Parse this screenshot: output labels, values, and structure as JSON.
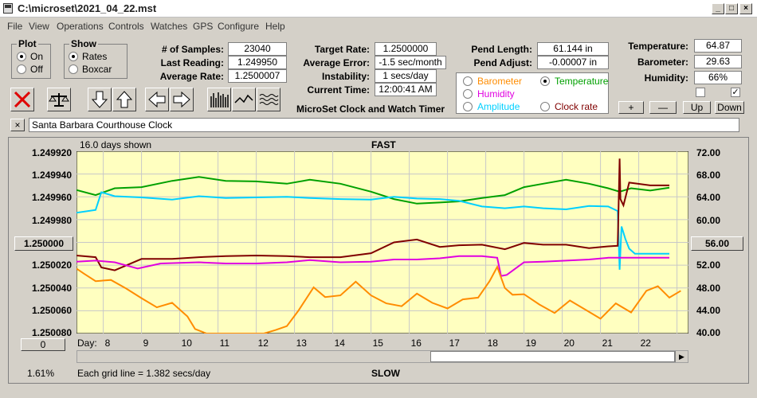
{
  "window": {
    "title": "C:\\microset\\2021_04_22.mst"
  },
  "menu": [
    "File",
    "View",
    "Operations",
    "Controls",
    "Watches",
    "GPS",
    "Configure",
    "Help"
  ],
  "plot_group": {
    "title": "Plot",
    "options": [
      "On",
      "Off"
    ],
    "selected": "On"
  },
  "show_group": {
    "title": "Show",
    "options": [
      "Rates",
      "Boxcar"
    ],
    "selected": "Rates"
  },
  "fields": {
    "samples": {
      "label": "# of Samples:",
      "value": "23040"
    },
    "last_reading": {
      "label": "Last Reading:",
      "value": "1.249950"
    },
    "average_rate": {
      "label": "Average Rate:",
      "value": "1.2500007"
    },
    "target_rate": {
      "label": "Target Rate:",
      "value": "1.2500000"
    },
    "average_error": {
      "label": "Average Error:",
      "value": "-1.5 sec/month"
    },
    "instability": {
      "label": "Instability:",
      "value": "1 secs/day"
    },
    "current_time": {
      "label": "Current Time:",
      "value": "12:00:41 AM"
    },
    "pend_length": {
      "label": "Pend Length:",
      "value": "61.144 in"
    },
    "pend_adjust": {
      "label": "Pend Adjust:",
      "value": "-0.00007 in"
    },
    "temperature": {
      "label": "Temperature:",
      "value": "64.87"
    },
    "barometer": {
      "label": "Barometer:",
      "value": "29.63"
    },
    "humidity": {
      "label": "Humidity:",
      "value": "66%"
    }
  },
  "subtitle": "MicroSet Clock and Watch Timer",
  "legend": [
    {
      "name": "Barometer",
      "color": "#ff8c00",
      "selected": false
    },
    {
      "name": "Temperature",
      "color": "#00a000",
      "selected": true
    },
    {
      "name": "Humidity",
      "color": "#e000e0",
      "selected": false
    },
    {
      "name": "Amplitude",
      "color": "#00d0ff",
      "selected": false
    },
    {
      "name": "Clock rate",
      "color": "#800000",
      "selected": false
    }
  ],
  "small_buttons": {
    "plus": "+",
    "minus": "—",
    "up": "Up",
    "down": "Down"
  },
  "checkboxes": [
    false,
    true
  ],
  "clock_name": {
    "close": "×",
    "value": "Santa Barbara Courthouse Clock"
  },
  "graph": {
    "days_shown": "16.0 days shown",
    "top_label": "FAST",
    "bottom_label": "SLOW",
    "left_button": "1.250000",
    "right_button": "56.00",
    "zero_button": "0",
    "day_prefix": "Day:",
    "percent": "1.61%",
    "grid_note": "Each grid line = 1.382 secs/day"
  },
  "chart_data": {
    "type": "line",
    "left_axis_ticks": [
      "1.249920",
      "1.249940",
      "1.249960",
      "1.249980",
      "1.250000",
      "1.250020",
      "1.250040",
      "1.250060",
      "1.250080"
    ],
    "right_axis_ticks": [
      "72.00",
      "68.00",
      "64.00",
      "60.00",
      "56.00",
      "52.00",
      "48.00",
      "44.00",
      "40.00"
    ],
    "x_ticks": [
      "8",
      "9",
      "10",
      "11",
      "12",
      "13",
      "14",
      "15",
      "16",
      "17",
      "18",
      "19",
      "20",
      "21",
      "22"
    ],
    "xlim": [
      7.3,
      23.3
    ],
    "ylim_right": [
      40,
      72
    ],
    "series": [
      {
        "name": "Temperature",
        "color": "#00a000",
        "x": [
          7.3,
          7.8,
          8.3,
          9,
          9.8,
          10.5,
          11.2,
          12,
          12.8,
          13.4,
          14.2,
          15,
          15.6,
          16.2,
          16.8,
          17.3,
          17.9,
          18.5,
          19,
          19.5,
          20.1,
          20.7,
          21.2,
          21.5,
          21.8,
          22.3,
          22.8
        ],
        "y": [
          65.2,
          64.3,
          65.5,
          65.7,
          66.8,
          67.5,
          66.8,
          66.7,
          66.3,
          67,
          66.3,
          64.9,
          63.6,
          62.8,
          63,
          63.2,
          63.8,
          64.3,
          65.7,
          66.3,
          67,
          66.3,
          65.5,
          64.9,
          65.5,
          65.1,
          65.6
        ]
      },
      {
        "name": "Amplitude",
        "color": "#00d0ff",
        "x": [
          7.3,
          7.8,
          7.95,
          8.3,
          9,
          9.8,
          10.5,
          11.2,
          12,
          12.8,
          13.4,
          14.2,
          15,
          15.6,
          16.2,
          16.8,
          17.3,
          17.9,
          18.5,
          19,
          19.5,
          20.1,
          20.7,
          21.2,
          21.45,
          21.5,
          21.55,
          21.65,
          21.75,
          21.9,
          22.3,
          22.8
        ],
        "y": [
          61.2,
          61.7,
          64.8,
          64.1,
          63.9,
          63.5,
          64.1,
          63.8,
          63.9,
          64.0,
          63.8,
          63.6,
          63.5,
          64.0,
          63.7,
          63.6,
          63.3,
          62.3,
          62.0,
          62.3,
          62.0,
          61.8,
          62.4,
          62.3,
          61.5,
          51.2,
          58.8,
          56.6,
          54.9,
          54.0,
          54.0,
          54.0
        ]
      },
      {
        "name": "Clock rate",
        "color": "#800000",
        "x": [
          7.3,
          7.8,
          7.95,
          8.3,
          9,
          9.8,
          10.5,
          11.2,
          12,
          12.8,
          13.4,
          14.2,
          15,
          15.6,
          16.2,
          16.8,
          17.3,
          17.9,
          18.5,
          19,
          19.5,
          20.1,
          20.7,
          21.2,
          21.45,
          21.5,
          21.52,
          21.6,
          21.75,
          22.3,
          22.8
        ],
        "y": [
          53.7,
          53.4,
          51.6,
          51.1,
          53.1,
          53.1,
          53.4,
          53.6,
          53.7,
          53.6,
          53.4,
          53.4,
          54.1,
          56.0,
          56.5,
          55.2,
          55.5,
          55.6,
          54.8,
          55.9,
          55.6,
          55.6,
          55.0,
          55.3,
          55.4,
          70.7,
          63.6,
          62.5,
          66.5,
          66.0,
          66.0
        ]
      },
      {
        "name": "Humidity",
        "color": "#e000e0",
        "x": [
          7.3,
          7.8,
          8.3,
          8.9,
          9.5,
          10.5,
          11.2,
          12,
          12.8,
          13.4,
          14.2,
          15,
          15.6,
          16.2,
          16.8,
          17.3,
          17.9,
          18.3,
          18.4,
          18.55,
          19,
          19.5,
          20.1,
          20.7,
          21.2,
          21.5,
          21.8,
          22.3,
          22.8
        ],
        "y": [
          52.6,
          52.8,
          52.5,
          51.4,
          52.3,
          52.5,
          52.3,
          52.3,
          52.5,
          52.9,
          52.5,
          52.6,
          53.0,
          53.0,
          53.2,
          53.6,
          53.6,
          53.3,
          50.1,
          50.3,
          52.5,
          52.6,
          52.8,
          53.0,
          53.3,
          53.3,
          53.3,
          53.3,
          53.3
        ]
      },
      {
        "name": "Barometer",
        "color": "#ff8c00",
        "x": [
          7.3,
          7.5,
          7.8,
          8.2,
          8.6,
          9,
          9.4,
          9.8,
          10.2,
          10.4,
          10.7,
          11.2,
          11.8,
          12.2,
          12.5,
          12.8,
          13.1,
          13.5,
          13.8,
          14.2,
          14.6,
          15,
          15.4,
          15.8,
          16.2,
          16.6,
          17.0,
          17.4,
          17.8,
          18.1,
          18.3,
          18.5,
          18.7,
          19,
          19.4,
          19.8,
          20.2,
          20.6,
          21.0,
          21.4,
          21.8,
          22.2,
          22.5,
          22.8,
          23.1
        ],
        "y": [
          51.4,
          50.5,
          49.2,
          49.4,
          47.9,
          46.2,
          44.6,
          45.4,
          43.0,
          40.8,
          40.0,
          40.0,
          40.0,
          40.0,
          40.6,
          41.3,
          44.0,
          48.1,
          46.4,
          46.7,
          49.1,
          46.7,
          45.3,
          44.8,
          47.0,
          45.4,
          44.4,
          46.0,
          46.3,
          49.2,
          51.7,
          48.0,
          46.8,
          46.9,
          45.1,
          43.6,
          45.8,
          44.2,
          42.6,
          45.3,
          43.7,
          47.5,
          48.3,
          46.3,
          47.5
        ]
      }
    ]
  }
}
